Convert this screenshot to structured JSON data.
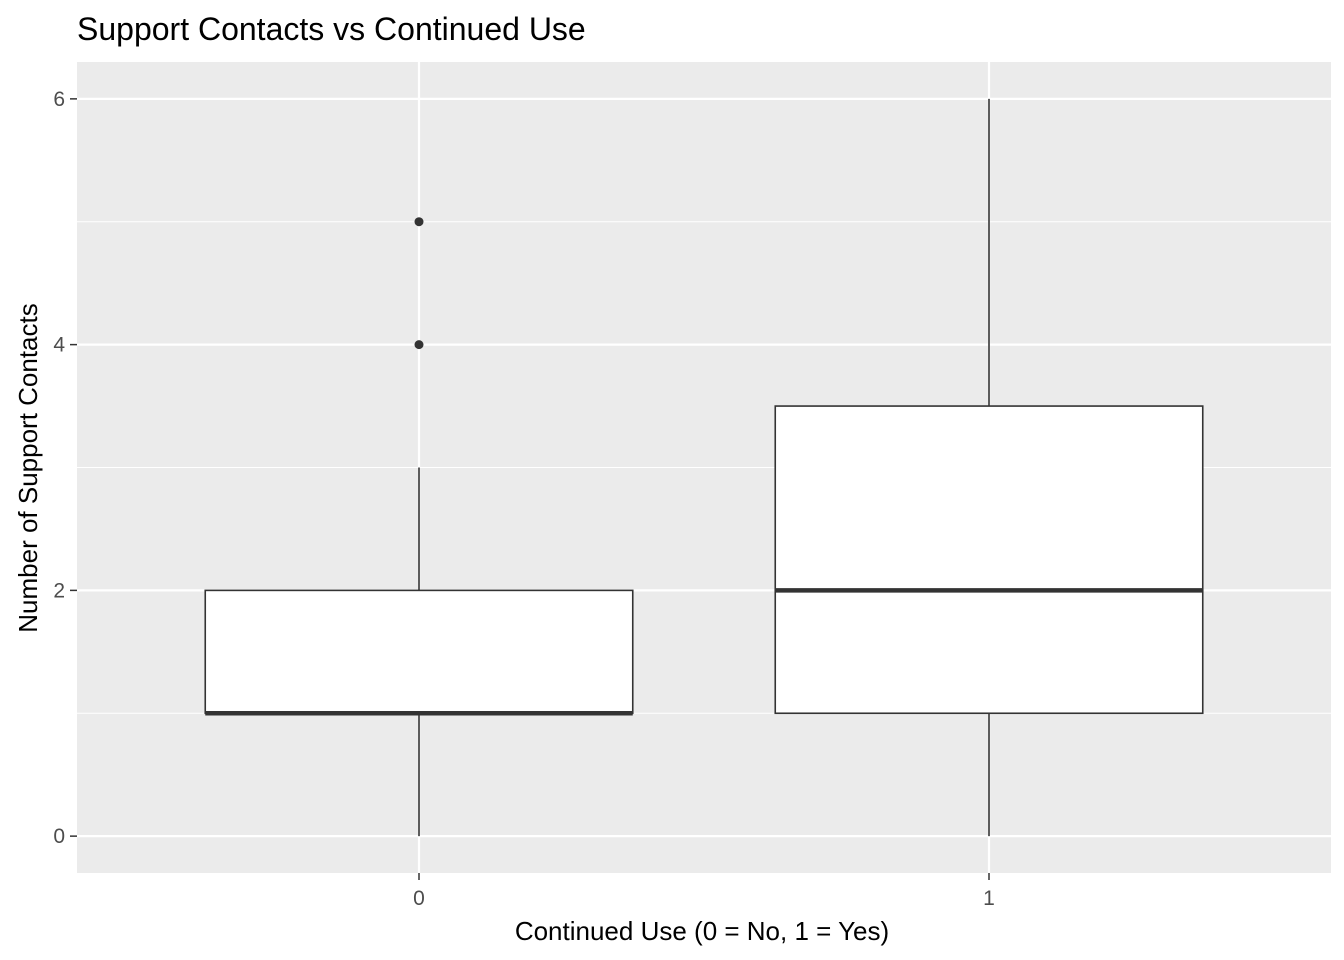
{
  "chart_data": {
    "type": "boxplot",
    "title": "Support Contacts vs Continued Use",
    "xlabel": "Continued Use (0 = No, 1 = Yes)",
    "ylabel": "Number of Support Contacts",
    "categories": [
      "0",
      "1"
    ],
    "y_ticks": [
      0,
      2,
      4,
      6
    ],
    "ylim": [
      -0.3,
      6.3
    ],
    "grid": true,
    "legend": "none",
    "boxes": [
      {
        "category": "0",
        "min": 0,
        "q1": 1,
        "median": 1,
        "q3": 2,
        "max": 3,
        "outliers": [
          4,
          5
        ]
      },
      {
        "category": "1",
        "min": 0,
        "q1": 1,
        "median": 2,
        "q3": 3.5,
        "max": 6,
        "outliers": []
      }
    ],
    "colors": {
      "panel_background": "#ebebeb",
      "grid_major": "#ffffff",
      "box_fill": "#ffffff",
      "box_line": "#333333",
      "tick_text": "#4d4d4d",
      "title_text": "#000000"
    }
  }
}
